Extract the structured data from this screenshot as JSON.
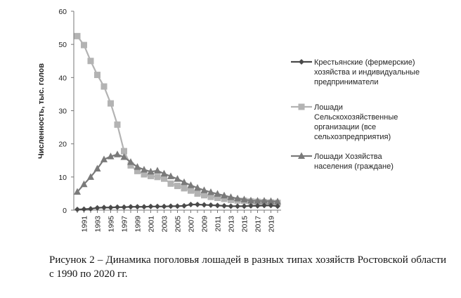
{
  "chart_data": {
    "type": "line",
    "ylabel": "Численность, тыс. голов",
    "ylim": [
      0,
      60
    ],
    "yticks": [
      0,
      10,
      20,
      30,
      40,
      50,
      60
    ],
    "xlim": [
      1990,
      2020
    ],
    "xtick_labels": [
      "1991",
      "1993",
      "1995",
      "1997",
      "1999",
      "2001",
      "2003",
      "2005",
      "2007",
      "2009",
      "2011",
      "2013",
      "2015",
      "2017",
      "2019"
    ],
    "grid": false,
    "legend_position": "right",
    "x": [
      1990,
      1991,
      1992,
      1993,
      1994,
      1995,
      1996,
      1997,
      1998,
      1999,
      2000,
      2001,
      2002,
      2003,
      2004,
      2005,
      2006,
      2007,
      2008,
      2009,
      2010,
      2011,
      2012,
      2013,
      2014,
      2015,
      2016,
      2017,
      2018,
      2019,
      2020
    ],
    "series": [
      {
        "name": "Крестьянские (фермерские) хозяйства и индивидуальные предприниматели",
        "marker": "diamond",
        "color": "#4a4a4a",
        "values": [
          0.2,
          0.3,
          0.4,
          0.7,
          0.8,
          0.8,
          0.9,
          0.9,
          1.0,
          1.0,
          1.0,
          1.1,
          1.1,
          1.1,
          1.2,
          1.2,
          1.3,
          1.7,
          1.7,
          1.6,
          1.5,
          1.4,
          1.3,
          1.2,
          1.2,
          1.2,
          1.3,
          1.3,
          1.4,
          1.4,
          1.2
        ]
      },
      {
        "name": "Лошади Сельскохозяйственные организации (все сельхозпредприятия)",
        "marker": "square",
        "color": "#b3b3b3",
        "values": [
          52.5,
          49.8,
          45.0,
          40.8,
          37.3,
          32.2,
          25.8,
          17.8,
          13.5,
          11.8,
          10.8,
          10.3,
          10.0,
          9.5,
          8.0,
          7.3,
          6.6,
          5.9,
          5.0,
          4.5,
          4.0,
          3.7,
          3.4,
          3.1,
          2.9,
          2.8,
          2.6,
          2.5,
          2.4,
          2.3,
          2.2
        ]
      },
      {
        "name": "Лошади Хозяйства населения (граждане)",
        "marker": "triangle",
        "color": "#7a7a7a",
        "values": [
          5.5,
          7.8,
          10.0,
          12.5,
          15.3,
          16.2,
          16.8,
          16.0,
          14.5,
          13.0,
          12.2,
          11.6,
          11.9,
          11.0,
          10.2,
          9.4,
          8.4,
          7.5,
          6.7,
          6.0,
          5.4,
          4.9,
          4.4,
          3.9,
          3.5,
          3.2,
          2.9,
          2.8,
          2.8,
          2.7,
          2.6
        ]
      }
    ],
    "legend_lines": [
      [
        "Крестьянские (фермерские)",
        "хозяйства и индивидуальные",
        "предприниматели"
      ],
      [
        "Лошади",
        "Сельскохозяйственные",
        "организации (все",
        "сельхозпредприятия)"
      ],
      [
        "Лошади Хозяйства",
        "населения (граждане)"
      ]
    ]
  },
  "caption": "Рисунок 2 – Динамика поголовья лошадей в разных типах хозяйств Ростовской области с 1990 по 2020 гг."
}
